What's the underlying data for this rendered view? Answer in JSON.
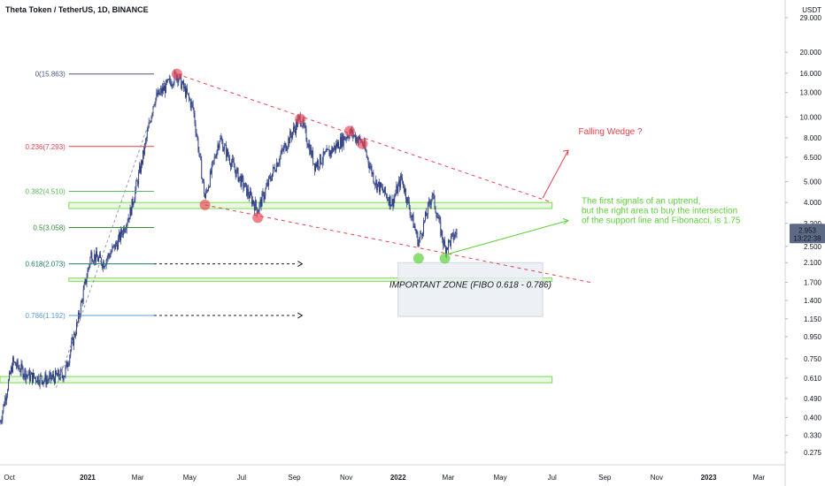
{
  "header": {
    "symbol_title": "Theta Token / TetherUS, 1D, BINANCE"
  },
  "price_scale": {
    "currency": "USDT",
    "last_price": "2.953",
    "countdown": "13:22:38",
    "last_price_color": "#5d6a85"
  },
  "colors": {
    "candles": "#2a3a80",
    "resistance_line": "#e8414f",
    "support_zone": "#7ed957",
    "important_zone_fill": "#e8edf2",
    "arrow_up": "#e8414f",
    "arrow_green": "#5cd13a"
  },
  "chart_data": {
    "type": "candlestick",
    "scale": "log",
    "ylim": [
      0.25,
      29
    ],
    "x_range": [
      "2020-09-20",
      "2023-04-01"
    ],
    "x_ticks": [
      "Oct",
      "2021",
      "Mar",
      "May",
      "Jul",
      "Sep",
      "Nov",
      "2022",
      "Mar",
      "May",
      "Jul",
      "Sep",
      "Nov",
      "2023",
      "Mar"
    ],
    "y_ticks": [
      "29.000",
      "20.000",
      "16.000",
      "13.000",
      "10.000",
      "8.000",
      "6.500",
      "5.000",
      "4.000",
      "3.200",
      "2.500",
      "2.100",
      "1.700",
      "1.400",
      "1.150",
      "0.950",
      "0.750",
      "0.610",
      "0.490",
      "0.400",
      "0.330",
      "0.275"
    ],
    "price_path": [
      [
        "2020-09-20",
        0.38
      ],
      [
        "2020-10-05",
        0.72
      ],
      [
        "2020-10-25",
        0.62
      ],
      [
        "2020-11-15",
        0.6
      ],
      [
        "2020-12-05",
        0.64
      ],
      [
        "2020-12-20",
        1.1
      ],
      [
        "2021-01-05",
        2.3
      ],
      [
        "2021-01-20",
        2.1
      ],
      [
        "2021-02-05",
        2.6
      ],
      [
        "2021-02-20",
        3.6
      ],
      [
        "2021-03-05",
        6.0
      ],
      [
        "2021-03-20",
        12.0
      ],
      [
        "2021-04-16",
        15.86
      ],
      [
        "2021-05-05",
        11.0
      ],
      [
        "2021-05-19",
        4.2
      ],
      [
        "2021-06-05",
        8.0
      ],
      [
        "2021-06-25",
        5.5
      ],
      [
        "2021-07-20",
        3.7
      ],
      [
        "2021-08-10",
        6.0
      ],
      [
        "2021-09-08",
        10.0
      ],
      [
        "2021-09-25",
        6.0
      ],
      [
        "2021-10-15",
        7.0
      ],
      [
        "2021-11-05",
        8.5
      ],
      [
        "2021-11-20",
        7.6
      ],
      [
        "2021-12-05",
        5.0
      ],
      [
        "2021-12-25",
        4.0
      ],
      [
        "2022-01-05",
        5.2
      ],
      [
        "2022-01-25",
        2.6
      ],
      [
        "2022-02-10",
        4.4
      ],
      [
        "2022-02-25",
        2.45
      ],
      [
        "2022-03-12",
        2.95
      ]
    ],
    "fib_levels": [
      {
        "label": "0(15.863)",
        "value": 15.863,
        "color": "#4a5680"
      },
      {
        "label": "0.236(7.293)",
        "value": 7.293,
        "color": "#e8414f"
      },
      {
        "label": "0.382(4.510)",
        "value": 4.51,
        "color": "#5cb85c"
      },
      {
        "label": "0.5(3.058)",
        "value": 3.058,
        "color": "#3b8d3b"
      },
      {
        "label": "0.618(2.073)",
        "value": 2.073,
        "color": "#1a7a6a"
      },
      {
        "label": "0.786(1.192)",
        "value": 1.192,
        "color": "#5a9bd5"
      }
    ],
    "support_zones": [
      {
        "low": 3.75,
        "high": 4.0,
        "from": "2020-12-10",
        "to": "2022-07-01"
      },
      {
        "low": 1.72,
        "high": 1.78,
        "from": "2020-12-10",
        "to": "2022-07-01"
      },
      {
        "low": 0.58,
        "high": 0.62,
        "from": "2020-09-20",
        "to": "2022-07-01"
      }
    ],
    "resistance_line": {
      "from": [
        "2021-04-16",
        15.86
      ],
      "to": [
        "2022-07-01",
        4.0
      ]
    },
    "support_line": {
      "from": [
        "2021-05-19",
        3.9
      ],
      "to": [
        "2022-08-15",
        1.7
      ]
    },
    "pivots_red": [
      [
        "2021-04-16",
        15.86
      ],
      [
        "2021-09-08",
        9.8
      ],
      [
        "2021-11-05",
        8.6
      ],
      [
        "2021-11-20",
        7.5
      ],
      [
        "2021-05-19",
        3.9
      ],
      [
        "2021-07-20",
        3.4
      ]
    ],
    "pivots_green": [
      [
        "2022-01-25",
        2.2
      ],
      [
        "2022-02-25",
        2.2
      ]
    ],
    "important_zone": {
      "label": "IMPORTANT ZONE (FIBO 0.618 - 0.786)",
      "low": 1.18,
      "high": 2.1,
      "from": "2022-01-01",
      "to": "2022-06-20"
    },
    "annotations": {
      "wedge": "Falling Wedge ?",
      "signal_lines": [
        "The first signals of an uptrend,",
        "but the right area to buy the intersection",
        "of the support line and Fibonacci, is 1.75"
      ]
    }
  }
}
